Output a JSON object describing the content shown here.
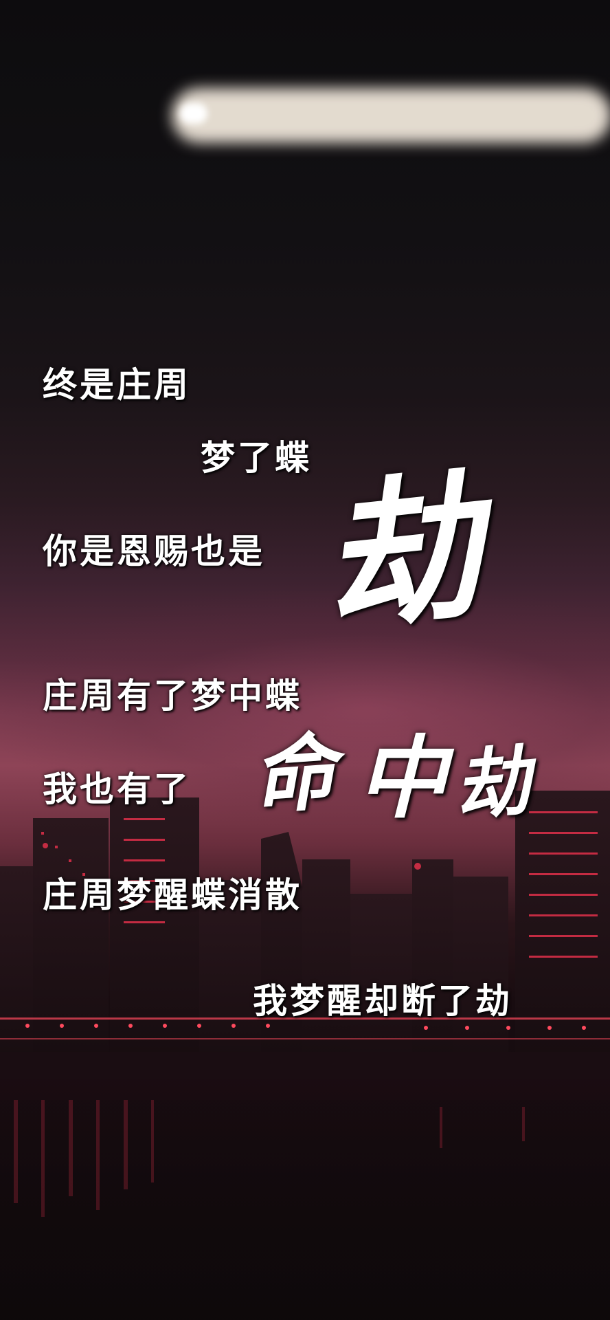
{
  "poem": {
    "lines": [
      "终是庄周",
      "梦了蝶",
      "你是恩赐也是",
      "庄周有了梦中蝶",
      "我也有了",
      "庄周梦醒蝶消散",
      "我梦醒却断了劫"
    ],
    "calligraphy": {
      "jie": "劫",
      "ming": "命",
      "zhong": "中",
      "jie2": "劫"
    }
  },
  "colors": {
    "text": "#ffffff",
    "sky_glow": "#8e4457",
    "city_lights": "#e0304a"
  }
}
